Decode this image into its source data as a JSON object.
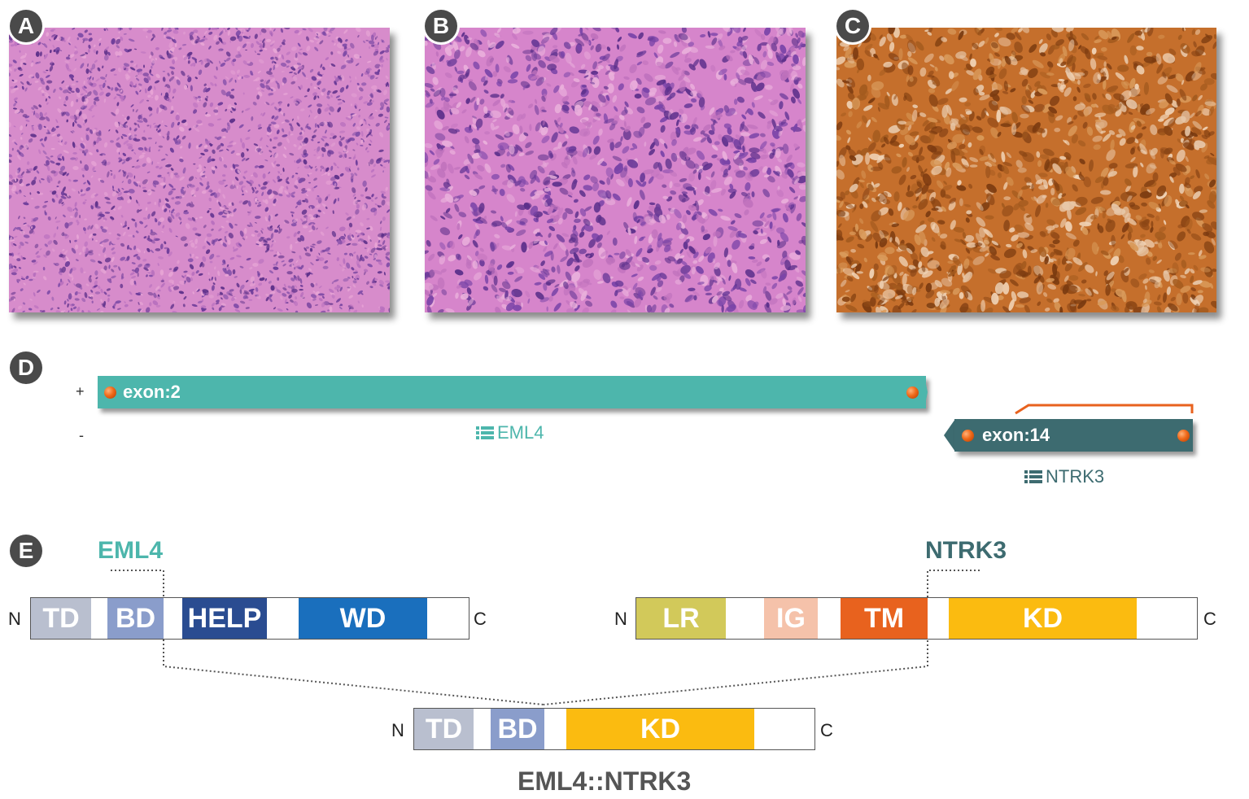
{
  "panels": {
    "a": {
      "label": "A"
    },
    "b": {
      "label": "B"
    },
    "c": {
      "label": "C"
    },
    "d": {
      "label": "D"
    },
    "e": {
      "label": "E"
    }
  },
  "colors": {
    "he_pink": "#d47fc4",
    "he_nuclei": "#6a3a98",
    "ihc_brown": "#c8712c",
    "eml4": "#4db6ac",
    "ntrk3": "#3d6b70",
    "orange": "#e8621e"
  },
  "panel_d": {
    "plus_strand": "+",
    "minus_strand": "-",
    "eml4_exon": "exon:2",
    "eml4_gene": "EML4",
    "ntrk3_exon": "exon:14",
    "ntrk3_gene": "NTRK3",
    "icon": "list-icon"
  },
  "panel_e": {
    "eml4_title": "EML4",
    "ntrk3_title": "NTRK3",
    "n_label": "N",
    "c_label": "C",
    "eml4_domains": {
      "td": "TD",
      "bd": "BD",
      "help": "HELP",
      "wd": "WD"
    },
    "ntrk3_domains": {
      "lr": "LR",
      "ig": "IG",
      "tm": "TM",
      "kd": "KD"
    },
    "fusion_domains": {
      "td": "TD",
      "bd": "BD",
      "kd": "KD"
    },
    "fusion_name": "EML4::NTRK3"
  }
}
